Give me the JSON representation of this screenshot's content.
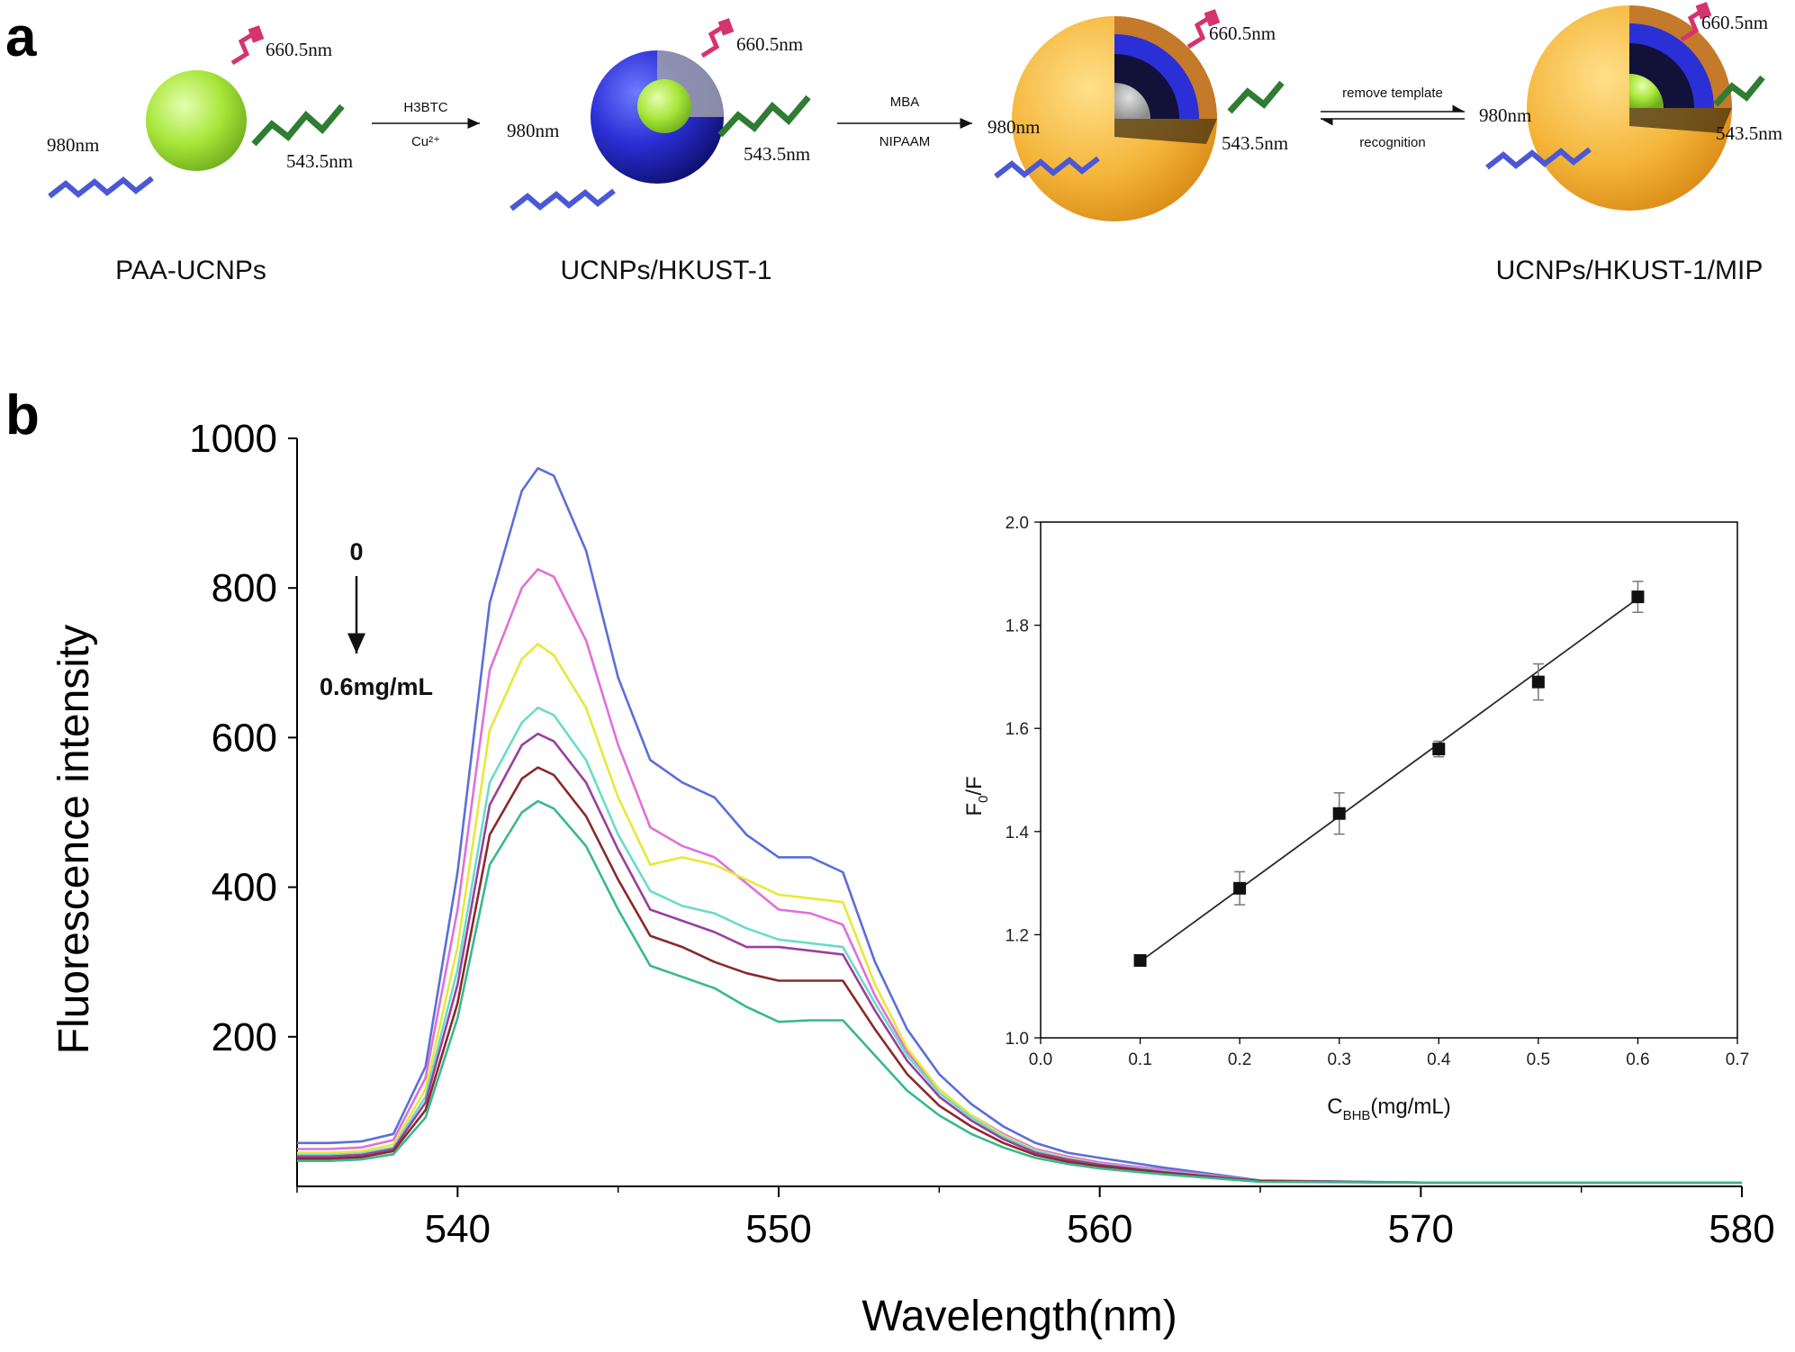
{
  "panel_a": {
    "letter": "a",
    "structures": [
      {
        "name": "PAA-UCNPs",
        "labels": {
          "excitation": "980nm",
          "red": "660.5nm",
          "green": "543.5nm"
        }
      },
      {
        "name": "UCNPs/HKUST-1",
        "labels": {
          "excitation": "980nm",
          "red": "660.5nm",
          "green": "543.5nm"
        }
      },
      {
        "name": "",
        "labels": {
          "excitation": "980nm",
          "red": "660.5nm",
          "green": "543.5nm"
        }
      },
      {
        "name": "UCNPs/HKUST-1/MIP",
        "labels": {
          "excitation": "980nm",
          "red": "660.5nm",
          "green": "543.5nm"
        }
      }
    ],
    "steps": [
      {
        "top": "H3BTC",
        "bottom": "Cu²⁺"
      },
      {
        "top": "MBA",
        "bottom": "NIPAAM"
      },
      {
        "top": "remove template",
        "bottom": "recognition"
      }
    ],
    "colors": {
      "nanoparticle_core": "#a8e63a",
      "mof_shell": "#2b2fd6",
      "mip_shell": "#f4b53a",
      "excitation": "#4a58d6",
      "green_emission": "#2e7d32",
      "red_emission": "#d6336c"
    }
  },
  "panel_b": {
    "letter": "b",
    "annotation": {
      "start": "0",
      "end": "0.6mg/mL"
    }
  },
  "chart_data": [
    {
      "type": "line",
      "title": "",
      "xlabel": "Wavelength(nm)",
      "ylabel": "Fluorescence intensity",
      "xlim": [
        535,
        580
      ],
      "ylim": [
        0,
        1000
      ],
      "xticks": [
        540,
        550,
        560,
        570,
        580
      ],
      "yticks": [
        200,
        400,
        600,
        800,
        1000
      ],
      "grid": false,
      "legend": "none",
      "x": [
        535,
        536,
        537,
        538,
        539,
        540,
        541,
        542,
        542.5,
        543,
        544,
        545,
        546,
        547,
        548,
        549,
        550,
        551,
        552,
        553,
        554,
        555,
        556,
        557,
        558,
        559,
        560,
        562,
        565,
        570,
        575,
        580
      ],
      "series": [
        {
          "name": "",
          "color": "#5a6fd8",
          "values": [
            58,
            58,
            60,
            70,
            160,
            420,
            780,
            930,
            960,
            950,
            850,
            680,
            570,
            540,
            520,
            470,
            440,
            440,
            420,
            300,
            210,
            150,
            110,
            80,
            58,
            45,
            38,
            25,
            8,
            5,
            5,
            5
          ]
        },
        {
          "name": "",
          "color": "#e070d8",
          "values": [
            50,
            50,
            52,
            62,
            145,
            370,
            690,
            800,
            825,
            815,
            730,
            590,
            480,
            455,
            440,
            405,
            370,
            365,
            350,
            255,
            180,
            130,
            95,
            70,
            50,
            40,
            32,
            22,
            7,
            5,
            5,
            5
          ]
        },
        {
          "name": "",
          "color": "#e8e838",
          "values": [
            45,
            45,
            47,
            56,
            130,
            320,
            610,
            705,
            725,
            710,
            640,
            520,
            430,
            440,
            430,
            410,
            390,
            385,
            380,
            270,
            185,
            130,
            95,
            68,
            48,
            38,
            30,
            20,
            7,
            5,
            5,
            5
          ]
        },
        {
          "name": "",
          "color": "#6adcc8",
          "values": [
            42,
            42,
            44,
            52,
            120,
            290,
            540,
            620,
            640,
            630,
            570,
            470,
            395,
            375,
            365,
            345,
            330,
            325,
            320,
            245,
            175,
            125,
            92,
            66,
            47,
            37,
            30,
            20,
            7,
            5,
            5,
            5
          ]
        },
        {
          "name": "",
          "color": "#9a3fa0",
          "values": [
            40,
            40,
            42,
            50,
            112,
            270,
            510,
            590,
            605,
            595,
            540,
            450,
            370,
            355,
            340,
            320,
            320,
            315,
            310,
            235,
            168,
            120,
            88,
            63,
            45,
            36,
            29,
            19,
            7,
            5,
            5,
            5
          ]
        },
        {
          "name": "",
          "color": "#8a2a2a",
          "values": [
            37,
            37,
            39,
            47,
            102,
            245,
            470,
            545,
            560,
            550,
            495,
            410,
            335,
            320,
            300,
            285,
            275,
            275,
            275,
            210,
            150,
            108,
            80,
            58,
            42,
            33,
            27,
            18,
            7,
            5,
            5,
            5
          ]
        },
        {
          "name": "",
          "color": "#38b890",
          "values": [
            34,
            34,
            36,
            43,
            92,
            225,
            430,
            500,
            515,
            505,
            455,
            370,
            295,
            280,
            265,
            240,
            220,
            222,
            222,
            175,
            128,
            95,
            70,
            52,
            38,
            30,
            24,
            16,
            6,
            5,
            5,
            5
          ]
        }
      ]
    },
    {
      "type": "scatter",
      "title": "",
      "xlabel": "C",
      "xlabel_sub": "BHB",
      "xlabel_unit": "(mg/mL)",
      "ylabel": "F",
      "ylabel_sub": "0",
      "ylabel_rest": "/F",
      "xlim": [
        0.0,
        0.7
      ],
      "ylim": [
        1.0,
        2.0
      ],
      "xticks": [
        0.0,
        0.1,
        0.2,
        0.3,
        0.4,
        0.5,
        0.6,
        0.7
      ],
      "xtick_labels": [
        "0.0",
        "0.1",
        "0.2",
        "0.3",
        "0.4",
        "0.5",
        "0.6",
        "0.7"
      ],
      "yticks": [
        1.0,
        1.2,
        1.4,
        1.6,
        1.8,
        2.0
      ],
      "ytick_labels": [
        "1.0",
        "1.2",
        "1.4",
        "1.6",
        "1.8",
        "2.0"
      ],
      "x": [
        0.1,
        0.2,
        0.3,
        0.4,
        0.5,
        0.6
      ],
      "y": [
        1.15,
        1.29,
        1.435,
        1.56,
        1.69,
        1.855
      ],
      "error": [
        0.01,
        0.032,
        0.04,
        0.015,
        0.035,
        0.03
      ],
      "fit_line": {
        "x": [
          0.1,
          0.6
        ],
        "y": [
          1.148,
          1.852
        ]
      }
    }
  ]
}
